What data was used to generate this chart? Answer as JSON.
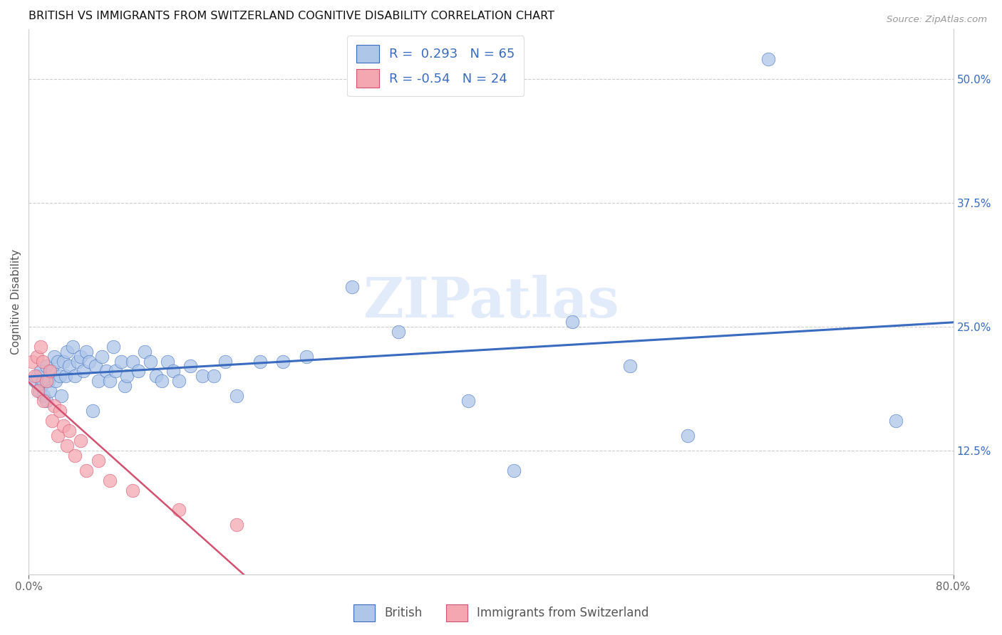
{
  "title": "BRITISH VS IMMIGRANTS FROM SWITZERLAND COGNITIVE DISABILITY CORRELATION CHART",
  "source": "Source: ZipAtlas.com",
  "ylabel": "Cognitive Disability",
  "right_yticks": [
    "50.0%",
    "37.5%",
    "25.0%",
    "12.5%"
  ],
  "right_ytick_vals": [
    0.5,
    0.375,
    0.25,
    0.125
  ],
  "xlim": [
    0.0,
    0.8
  ],
  "ylim": [
    0.0,
    0.55
  ],
  "british_R": 0.293,
  "british_N": 65,
  "swiss_R": -0.54,
  "swiss_N": 24,
  "british_color": "#aec6e8",
  "swiss_color": "#f4a7b0",
  "british_line_color": "#3a6bbf",
  "swiss_line_color": "#d45070",
  "watermark": "ZIPatlas",
  "british_x": [
    0.005,
    0.007,
    0.009,
    0.01,
    0.011,
    0.012,
    0.013,
    0.015,
    0.015,
    0.017,
    0.018,
    0.02,
    0.022,
    0.023,
    0.025,
    0.027,
    0.028,
    0.03,
    0.032,
    0.033,
    0.035,
    0.038,
    0.04,
    0.042,
    0.045,
    0.047,
    0.05,
    0.052,
    0.055,
    0.058,
    0.06,
    0.063,
    0.067,
    0.07,
    0.073,
    0.075,
    0.08,
    0.083,
    0.085,
    0.09,
    0.095,
    0.1,
    0.105,
    0.11,
    0.115,
    0.12,
    0.125,
    0.13,
    0.14,
    0.15,
    0.16,
    0.17,
    0.18,
    0.2,
    0.22,
    0.24,
    0.28,
    0.32,
    0.38,
    0.42,
    0.47,
    0.52,
    0.57,
    0.64,
    0.75
  ],
  "british_y": [
    0.195,
    0.2,
    0.185,
    0.205,
    0.19,
    0.195,
    0.18,
    0.21,
    0.175,
    0.195,
    0.185,
    0.205,
    0.22,
    0.195,
    0.215,
    0.2,
    0.18,
    0.215,
    0.2,
    0.225,
    0.21,
    0.23,
    0.2,
    0.215,
    0.22,
    0.205,
    0.225,
    0.215,
    0.165,
    0.21,
    0.195,
    0.22,
    0.205,
    0.195,
    0.23,
    0.205,
    0.215,
    0.19,
    0.2,
    0.215,
    0.205,
    0.225,
    0.215,
    0.2,
    0.195,
    0.215,
    0.205,
    0.195,
    0.21,
    0.2,
    0.2,
    0.215,
    0.18,
    0.215,
    0.215,
    0.22,
    0.29,
    0.245,
    0.175,
    0.105,
    0.255,
    0.21,
    0.14,
    0.52,
    0.155
  ],
  "swiss_x": [
    0.003,
    0.005,
    0.007,
    0.008,
    0.01,
    0.012,
    0.013,
    0.015,
    0.018,
    0.02,
    0.022,
    0.025,
    0.027,
    0.03,
    0.033,
    0.035,
    0.04,
    0.045,
    0.05,
    0.06,
    0.07,
    0.09,
    0.13,
    0.18
  ],
  "swiss_y": [
    0.215,
    0.2,
    0.22,
    0.185,
    0.23,
    0.215,
    0.175,
    0.195,
    0.205,
    0.155,
    0.17,
    0.14,
    0.165,
    0.15,
    0.13,
    0.145,
    0.12,
    0.135,
    0.105,
    0.115,
    0.095,
    0.085,
    0.065,
    0.05
  ]
}
